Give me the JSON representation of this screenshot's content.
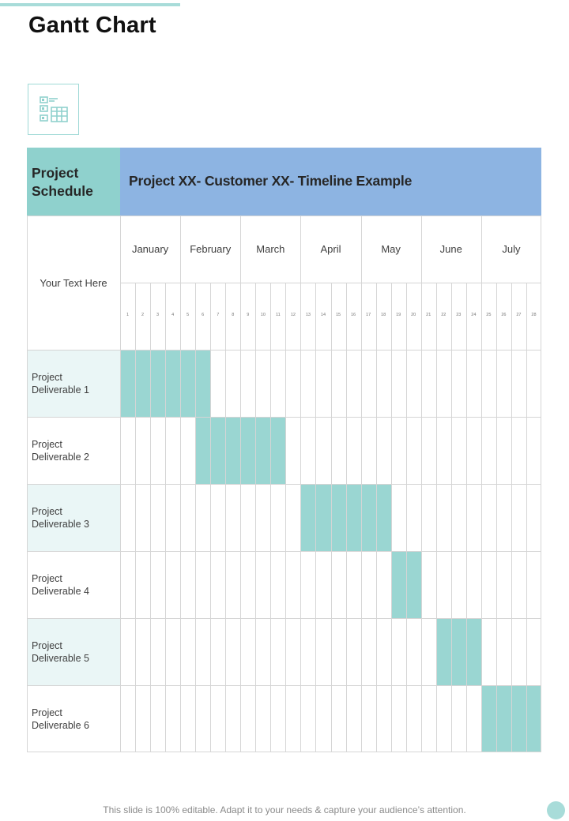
{
  "page": {
    "title": "Gantt Chart",
    "footer": "This slide is 100% editable. Adapt it to your needs & capture your audience’s attention."
  },
  "icon": {
    "name": "schedule-calendar-icon",
    "color": "#9fd9d6"
  },
  "colors": {
    "accent": "#a8dcd9",
    "corner": "#8fd1cd",
    "header": "#8db4e2",
    "bar": "#9ad6d2",
    "row_alt": "#eaf6f6"
  },
  "table": {
    "corner_label_line1": "Project",
    "corner_label_line2": "Schedule",
    "header_title": "Project XX- Customer XX- Timeline Example",
    "your_text": "Your Text Here"
  },
  "chart_data": {
    "type": "gantt",
    "title": "Project XX- Customer XX- Timeline Example",
    "months": [
      "January",
      "February",
      "March",
      "April",
      "May",
      "June",
      "July"
    ],
    "weeks": [
      "1",
      "2",
      "3",
      "4",
      "5",
      "6",
      "7",
      "8",
      "9",
      "10",
      "11",
      "12",
      "13",
      "14",
      "15",
      "16",
      "17",
      "18",
      "19",
      "20",
      "21",
      "22",
      "23",
      "24",
      "25",
      "26",
      "27",
      "28"
    ],
    "tasks": [
      {
        "line1": "Project",
        "line2": "Deliverable  1",
        "start_week": 1,
        "end_week": 6
      },
      {
        "line1": "Project",
        "line2": "Deliverable  2",
        "start_week": 6,
        "end_week": 11
      },
      {
        "line1": "Project",
        "line2": "Deliverable  3",
        "start_week": 13,
        "end_week": 18
      },
      {
        "line1": "Project",
        "line2": "Deliverable  4",
        "start_week": 19,
        "end_week": 20
      },
      {
        "line1": "Project",
        "line2": "Deliverable  5",
        "start_week": 22,
        "end_week": 24
      },
      {
        "line1": "Project",
        "line2": "Deliverable  6",
        "start_week": 25,
        "end_week": 28
      }
    ]
  }
}
